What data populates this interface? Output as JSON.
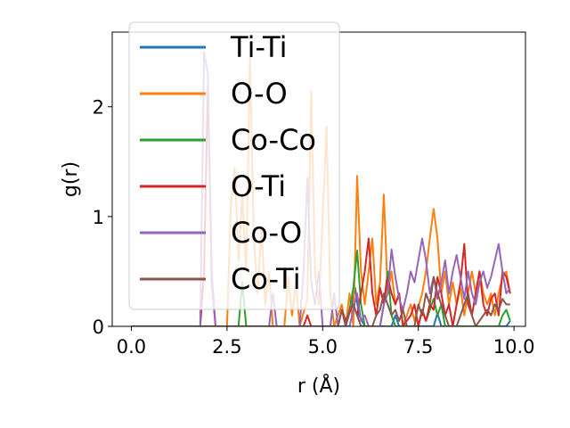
{
  "chart_data": {
    "type": "line",
    "xlabel": "r (Å)",
    "ylabel": "g(r)",
    "xlim": [
      -0.5,
      10.3
    ],
    "ylim": [
      0,
      2.68
    ],
    "xticks": [
      "0.0",
      "2.5",
      "5.0",
      "7.5",
      "10.0"
    ],
    "yticks": [
      "0",
      "1",
      "2"
    ],
    "legend_position": "upper left (overlapping plot)",
    "grid": false,
    "series": [
      {
        "name": "Ti-Ti",
        "color": "#1f77b4",
        "points": [
          [
            0,
            0
          ],
          [
            5.6,
            0
          ],
          [
            5.75,
            0.18
          ],
          [
            5.85,
            0.35
          ],
          [
            5.95,
            0.1
          ],
          [
            6.1,
            0
          ],
          [
            6.8,
            0
          ],
          [
            6.9,
            0.1
          ],
          [
            7.0,
            0
          ],
          [
            7.9,
            0
          ],
          [
            8.0,
            0.12
          ],
          [
            8.1,
            0
          ],
          [
            9.8,
            0
          ],
          [
            9.9,
            0.05
          ]
        ]
      },
      {
        "name": "O-O",
        "color": "#ff7f0e",
        "points": [
          [
            0,
            0
          ],
          [
            2.5,
            0
          ],
          [
            2.6,
            1.1
          ],
          [
            2.7,
            1.45
          ],
          [
            2.8,
            0.6
          ],
          [
            2.9,
            1.2
          ],
          [
            3.0,
            0.5
          ],
          [
            3.1,
            2.45
          ],
          [
            3.2,
            0.8
          ],
          [
            3.3,
            0.3
          ],
          [
            3.4,
            0.9
          ],
          [
            3.5,
            0.2
          ],
          [
            3.6,
            0.5
          ],
          [
            3.7,
            0
          ],
          [
            4.0,
            0
          ],
          [
            4.1,
            0.45
          ],
          [
            4.2,
            0.1
          ],
          [
            4.3,
            0.4
          ],
          [
            4.4,
            0
          ],
          [
            4.6,
            0.25
          ],
          [
            4.7,
            2.14
          ],
          [
            4.8,
            0.5
          ],
          [
            4.9,
            0.2
          ],
          [
            5.0,
            1.0
          ],
          [
            5.1,
            1.82
          ],
          [
            5.2,
            0.3
          ],
          [
            5.3,
            0
          ],
          [
            5.5,
            0.2
          ],
          [
            5.6,
            0
          ],
          [
            5.7,
            0.3
          ],
          [
            5.8,
            0
          ],
          [
            5.9,
            1.37
          ],
          [
            6.0,
            0.5
          ],
          [
            6.1,
            0.2
          ],
          [
            6.2,
            0.5
          ],
          [
            6.3,
            0.8
          ],
          [
            6.4,
            0.2
          ],
          [
            6.5,
            0.4
          ],
          [
            6.6,
            1.2
          ],
          [
            6.7,
            0.3
          ],
          [
            6.8,
            0.5
          ],
          [
            6.9,
            0.2
          ],
          [
            7.0,
            0.3
          ],
          [
            7.1,
            0
          ],
          [
            7.3,
            0.2
          ],
          [
            7.4,
            0.05
          ],
          [
            7.6,
            0.3
          ],
          [
            7.7,
            0.5
          ],
          [
            7.8,
            0.8
          ],
          [
            7.9,
            1.07
          ],
          [
            8.0,
            0.8
          ],
          [
            8.1,
            0.3
          ],
          [
            8.2,
            0.5
          ],
          [
            8.3,
            0.2
          ],
          [
            8.4,
            0.4
          ],
          [
            8.5,
            0.2
          ],
          [
            8.6,
            0.35
          ],
          [
            8.7,
            0.1
          ],
          [
            8.8,
            0.3
          ],
          [
            8.9,
            0.5
          ],
          [
            9.0,
            0.3
          ],
          [
            9.1,
            0.5
          ],
          [
            9.2,
            0.3
          ],
          [
            9.3,
            0.2
          ],
          [
            9.4,
            0.3
          ],
          [
            9.5,
            0.1
          ],
          [
            9.6,
            0.3
          ],
          [
            9.7,
            0.45
          ],
          [
            9.8,
            0.5
          ],
          [
            9.9,
            0.3
          ]
        ]
      },
      {
        "name": "Co-Co",
        "color": "#2ca02c",
        "points": [
          [
            0,
            0
          ],
          [
            2.8,
            0
          ],
          [
            2.9,
            0.4
          ],
          [
            3.0,
            0
          ],
          [
            5.6,
            0
          ],
          [
            5.7,
            0.15
          ],
          [
            5.8,
            0.35
          ],
          [
            5.9,
            0.69
          ],
          [
            6.0,
            0.2
          ],
          [
            6.1,
            0
          ],
          [
            6.5,
            0
          ],
          [
            6.6,
            0.2
          ],
          [
            6.7,
            0.5
          ],
          [
            6.8,
            0.1
          ],
          [
            6.9,
            0
          ],
          [
            7.5,
            0
          ],
          [
            7.6,
            0.15
          ],
          [
            7.7,
            0.05
          ],
          [
            7.9,
            0.25
          ],
          [
            8.0,
            0.1
          ],
          [
            8.1,
            0.2
          ],
          [
            8.2,
            0
          ],
          [
            9.6,
            0
          ],
          [
            9.7,
            0.1
          ],
          [
            9.8,
            0.15
          ],
          [
            9.9,
            0.05
          ]
        ]
      },
      {
        "name": "O-Ti",
        "color": "#d62728",
        "points": [
          [
            0,
            0
          ],
          [
            1.8,
            0
          ],
          [
            1.9,
            0.5
          ],
          [
            2.0,
            2.2
          ],
          [
            2.1,
            0.4
          ],
          [
            2.2,
            0
          ],
          [
            4.5,
            0
          ],
          [
            4.6,
            0.1
          ],
          [
            4.7,
            0
          ],
          [
            5.4,
            0
          ],
          [
            5.5,
            0.15
          ],
          [
            5.6,
            0.05
          ],
          [
            5.8,
            0.2
          ],
          [
            5.9,
            0.1
          ],
          [
            6.0,
            0.3
          ],
          [
            6.1,
            0.5
          ],
          [
            6.2,
            0.8
          ],
          [
            6.3,
            0.3
          ],
          [
            6.4,
            0.1
          ],
          [
            6.5,
            0.35
          ],
          [
            6.6,
            0.2
          ],
          [
            6.7,
            0.45
          ],
          [
            6.8,
            0.3
          ],
          [
            6.9,
            0.2
          ],
          [
            7.0,
            0.3
          ],
          [
            7.1,
            0
          ],
          [
            7.3,
            0.1
          ],
          [
            7.4,
            0.2
          ],
          [
            7.5,
            0
          ],
          [
            7.6,
            0.15
          ],
          [
            7.7,
            0.05
          ],
          [
            7.8,
            0.2
          ],
          [
            7.9,
            0.15
          ],
          [
            8.0,
            0.45
          ],
          [
            8.1,
            0.3
          ],
          [
            8.2,
            0.1
          ],
          [
            8.3,
            0.2
          ],
          [
            8.4,
            0
          ],
          [
            8.5,
            0.2
          ],
          [
            8.6,
            0.4
          ],
          [
            8.7,
            0.75
          ],
          [
            8.8,
            0.2
          ],
          [
            8.9,
            0.1
          ],
          [
            9.0,
            0.3
          ],
          [
            9.1,
            0.5
          ],
          [
            9.2,
            0.2
          ],
          [
            9.3,
            0.1
          ],
          [
            9.4,
            0.25
          ],
          [
            9.5,
            0.3
          ],
          [
            9.6,
            0.1
          ],
          [
            9.7,
            0.5
          ],
          [
            9.8,
            0.45
          ],
          [
            9.9,
            0.3
          ]
        ]
      },
      {
        "name": "Co-O",
        "color": "#9467bd",
        "points": [
          [
            0,
            0
          ],
          [
            1.8,
            0
          ],
          [
            1.9,
            2.5
          ],
          [
            2.0,
            2.3
          ],
          [
            2.1,
            0.5
          ],
          [
            2.2,
            0
          ],
          [
            3.6,
            0
          ],
          [
            3.7,
            0.3
          ],
          [
            3.8,
            0
          ],
          [
            4.4,
            0
          ],
          [
            4.5,
            0.5
          ],
          [
            4.6,
            1.35
          ],
          [
            4.7,
            0.4
          ],
          [
            4.8,
            0.2
          ],
          [
            4.9,
            0.5
          ],
          [
            5.0,
            0
          ],
          [
            5.2,
            0
          ],
          [
            5.3,
            0.3
          ],
          [
            5.4,
            0
          ],
          [
            5.7,
            0
          ],
          [
            5.8,
            0.15
          ],
          [
            5.9,
            0.3
          ],
          [
            6.0,
            0.05
          ],
          [
            6.1,
            0.1
          ],
          [
            6.2,
            0
          ],
          [
            6.5,
            0
          ],
          [
            6.6,
            0.2
          ],
          [
            6.7,
            0.3
          ],
          [
            6.8,
            0.7
          ],
          [
            6.9,
            0.45
          ],
          [
            7.0,
            0.25
          ],
          [
            7.1,
            0.15
          ],
          [
            7.2,
            0.3
          ],
          [
            7.3,
            0.5
          ],
          [
            7.4,
            0.4
          ],
          [
            7.5,
            0.6
          ],
          [
            7.6,
            0.8
          ],
          [
            7.7,
            0.6
          ],
          [
            7.8,
            0.3
          ],
          [
            7.9,
            0.45
          ],
          [
            8.0,
            0.25
          ],
          [
            8.1,
            0.4
          ],
          [
            8.2,
            0.6
          ],
          [
            8.3,
            0.3
          ],
          [
            8.4,
            0.5
          ],
          [
            8.5,
            0.65
          ],
          [
            8.6,
            0.45
          ],
          [
            8.7,
            0.25
          ],
          [
            8.8,
            0.5
          ],
          [
            8.9,
            0.3
          ],
          [
            9.0,
            0.2
          ],
          [
            9.1,
            0.4
          ],
          [
            9.2,
            0.5
          ],
          [
            9.3,
            0.35
          ],
          [
            9.4,
            0.45
          ],
          [
            9.5,
            0.6
          ],
          [
            9.6,
            0.75
          ],
          [
            9.7,
            0.5
          ],
          [
            9.8,
            0.3
          ],
          [
            9.9,
            0.35
          ]
        ]
      },
      {
        "name": "Co-Ti",
        "color": "#8c564b",
        "points": [
          [
            0,
            0
          ],
          [
            5.4,
            0
          ],
          [
            5.5,
            0.15
          ],
          [
            5.6,
            0
          ],
          [
            5.7,
            0.15
          ],
          [
            5.8,
            0.2
          ],
          [
            5.9,
            0.1
          ],
          [
            6.0,
            0
          ],
          [
            6.3,
            0
          ],
          [
            6.4,
            0.1
          ],
          [
            6.5,
            0.15
          ],
          [
            6.6,
            0.3
          ],
          [
            6.7,
            0.2
          ],
          [
            6.8,
            0.1
          ],
          [
            6.9,
            0.15
          ],
          [
            7.0,
            0.05
          ],
          [
            7.1,
            0.15
          ],
          [
            7.2,
            0
          ],
          [
            7.4,
            0
          ],
          [
            7.5,
            0.2
          ],
          [
            7.6,
            0.1
          ],
          [
            7.7,
            0.3
          ],
          [
            7.8,
            0.2
          ],
          [
            7.9,
            0.45
          ],
          [
            8.0,
            0.3
          ],
          [
            8.1,
            0.2
          ],
          [
            8.2,
            0.1
          ],
          [
            8.3,
            0
          ],
          [
            8.5,
            0
          ],
          [
            8.6,
            0.1
          ],
          [
            8.7,
            0.2
          ],
          [
            8.8,
            0.3
          ],
          [
            8.9,
            0.1
          ],
          [
            9.0,
            0
          ],
          [
            9.2,
            0.1
          ],
          [
            9.3,
            0.15
          ],
          [
            9.4,
            0.1
          ],
          [
            9.5,
            0.2
          ],
          [
            9.6,
            0.15
          ],
          [
            9.7,
            0.25
          ],
          [
            9.8,
            0.2
          ],
          [
            9.9,
            0.2
          ]
        ]
      }
    ]
  }
}
